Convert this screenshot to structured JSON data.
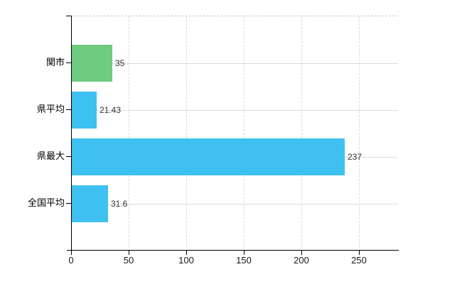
{
  "chart_data": {
    "type": "bar",
    "orientation": "horizontal",
    "title": "",
    "xlabel": "",
    "ylabel": "",
    "legend": "none",
    "grid": true,
    "categories": [
      "関市",
      "県平均",
      "県最大",
      "全国平均"
    ],
    "values": [
      35,
      21.43,
      237,
      31.6
    ],
    "value_labels": [
      "35",
      "21.43",
      "237",
      "31.6"
    ],
    "bar_colors": [
      "#6ecb7f",
      "#3ec1f0",
      "#3ec1f0",
      "#3ec1f0"
    ],
    "x_ticks": [
      0,
      50,
      100,
      150,
      200,
      250
    ],
    "x_tick_labels": [
      "0",
      "50",
      "100",
      "150",
      "200",
      "250"
    ],
    "xlim": [
      0,
      284
    ]
  },
  "colors": {
    "background": "#ffffff",
    "axis": "#000000",
    "gridline": "#dcdcdc",
    "plot_border_dashed": "#c9c9c9",
    "category_text": "#000000",
    "value_text": "#333333",
    "green_bar": "#6ecb7f",
    "blue_bar": "#3ec1f0"
  }
}
